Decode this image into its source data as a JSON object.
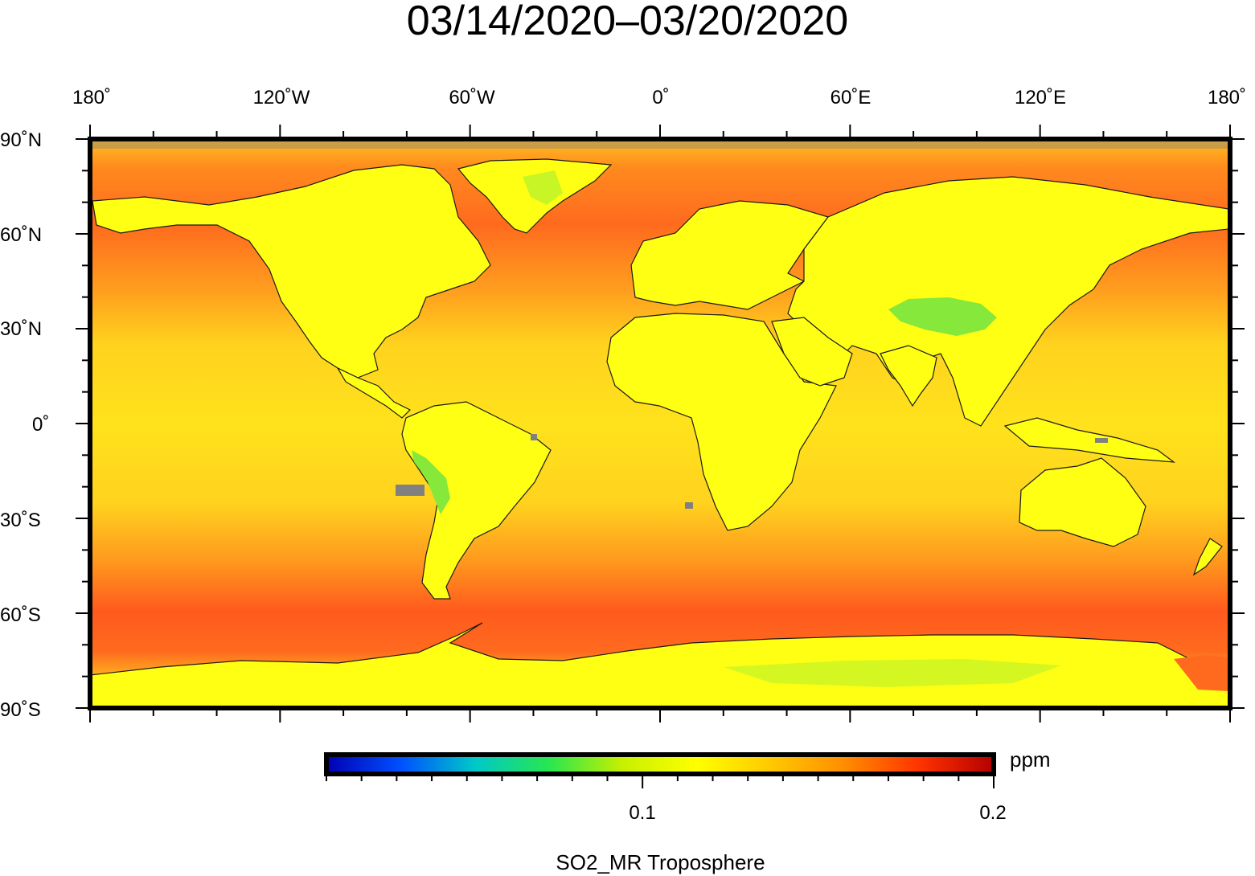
{
  "title": "03/14/2020–03/20/2020",
  "lon_labels": [
    "180˚",
    "120˚W",
    "60˚W",
    "0˚",
    "60˚E",
    "120˚E",
    "180˚"
  ],
  "lat_labels": [
    "90˚N",
    "60˚N",
    "30˚N",
    "0˚",
    "30˚S",
    "60˚S",
    "90˚S"
  ],
  "colorbar": {
    "tick_labels": [
      "0.1",
      "0.2"
    ],
    "unit": "ppm",
    "colors": [
      "#0000b4",
      "#0050ff",
      "#00c8c8",
      "#28e650",
      "#c8f000",
      "#ffff00",
      "#ffc800",
      "#ff8c00",
      "#ff3200",
      "#b40000"
    ]
  },
  "variable": "SO2_MR Troposphere",
  "colors": {
    "ocean_mid": "#ffd21e",
    "ocean_high_lat": "#ff6a1e",
    "land": "#ffff14",
    "high_terrain": "#86e83a",
    "missing": "#808080",
    "frame": "#000000"
  }
}
